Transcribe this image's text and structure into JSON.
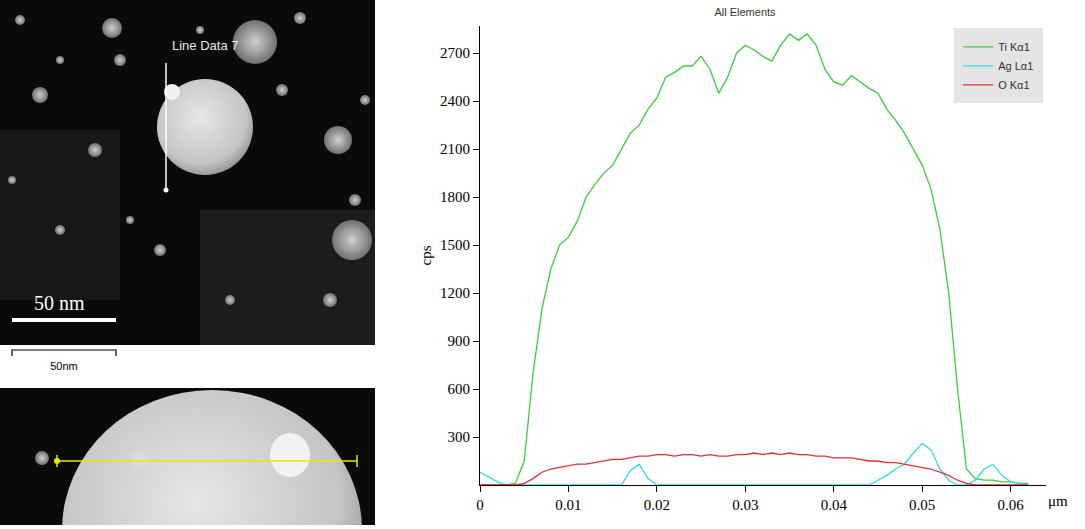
{
  "chart_data": {
    "type": "line",
    "title": "All Elements",
    "x_label": "μm",
    "y_label": "cps",
    "x": [
      0,
      0.001,
      0.002,
      0.003,
      0.004,
      0.005,
      0.006,
      0.007,
      0.008,
      0.009,
      0.01,
      0.011,
      0.012,
      0.013,
      0.014,
      0.015,
      0.016,
      0.017,
      0.018,
      0.019,
      0.02,
      0.021,
      0.022,
      0.023,
      0.024,
      0.025,
      0.026,
      0.027,
      0.028,
      0.029,
      0.03,
      0.031,
      0.032,
      0.033,
      0.034,
      0.035,
      0.036,
      0.037,
      0.038,
      0.039,
      0.04,
      0.041,
      0.042,
      0.043,
      0.044,
      0.045,
      0.046,
      0.047,
      0.048,
      0.049,
      0.05,
      0.051,
      0.052,
      0.053,
      0.054,
      0.055,
      0.056,
      0.057,
      0.058,
      0.059,
      0.06,
      0.061,
      0.062
    ],
    "series": [
      {
        "name": "Ti Kα1",
        "color": "#3ccc3c",
        "values": [
          0,
          0,
          0,
          0,
          10,
          150,
          700,
          1100,
          1350,
          1500,
          1550,
          1650,
          1800,
          1880,
          1950,
          2000,
          2100,
          2200,
          2250,
          2350,
          2420,
          2550,
          2580,
          2620,
          2620,
          2680,
          2600,
          2450,
          2550,
          2700,
          2750,
          2720,
          2680,
          2650,
          2750,
          2820,
          2780,
          2820,
          2750,
          2600,
          2520,
          2500,
          2560,
          2520,
          2480,
          2450,
          2350,
          2280,
          2200,
          2100,
          2000,
          1850,
          1600,
          1200,
          600,
          100,
          40,
          30,
          30,
          20,
          20,
          10,
          10
        ]
      },
      {
        "name": "Ag Lα1",
        "color": "#33d9e0",
        "values": [
          80,
          50,
          20,
          0,
          0,
          0,
          0,
          0,
          0,
          0,
          0,
          0,
          0,
          0,
          0,
          0,
          0,
          90,
          130,
          40,
          0,
          0,
          0,
          0,
          0,
          0,
          0,
          0,
          0,
          0,
          0,
          0,
          0,
          0,
          0,
          0,
          0,
          0,
          0,
          0,
          0,
          0,
          0,
          0,
          0,
          30,
          60,
          100,
          130,
          200,
          260,
          220,
          100,
          30,
          0,
          0,
          30,
          100,
          130,
          60,
          20,
          10,
          0
        ]
      },
      {
        "name": "O Kα1",
        "color": "#dd3333",
        "values": [
          0,
          0,
          0,
          0,
          0,
          10,
          40,
          80,
          100,
          110,
          120,
          130,
          130,
          140,
          150,
          160,
          160,
          170,
          180,
          180,
          190,
          190,
          180,
          190,
          190,
          180,
          190,
          180,
          180,
          190,
          190,
          200,
          190,
          200,
          190,
          200,
          190,
          190,
          180,
          180,
          170,
          170,
          170,
          160,
          150,
          150,
          140,
          140,
          130,
          120,
          110,
          100,
          80,
          60,
          30,
          10,
          0,
          0,
          0,
          0,
          0,
          0,
          0
        ]
      }
    ],
    "xlim": [
      0,
      0.064
    ],
    "xticks": [
      0,
      0.01,
      0.02,
      0.03,
      0.04,
      0.05,
      0.06
    ],
    "ylim": [
      0,
      2870
    ],
    "yticks": [
      300,
      600,
      900,
      1200,
      1500,
      1800,
      2100,
      2400,
      2700
    ],
    "grid": false,
    "legend": "top right"
  },
  "micrograph": {
    "line_label": "Line Data 7",
    "scale_bar": "50 nm",
    "scale_caption": "50nm"
  }
}
